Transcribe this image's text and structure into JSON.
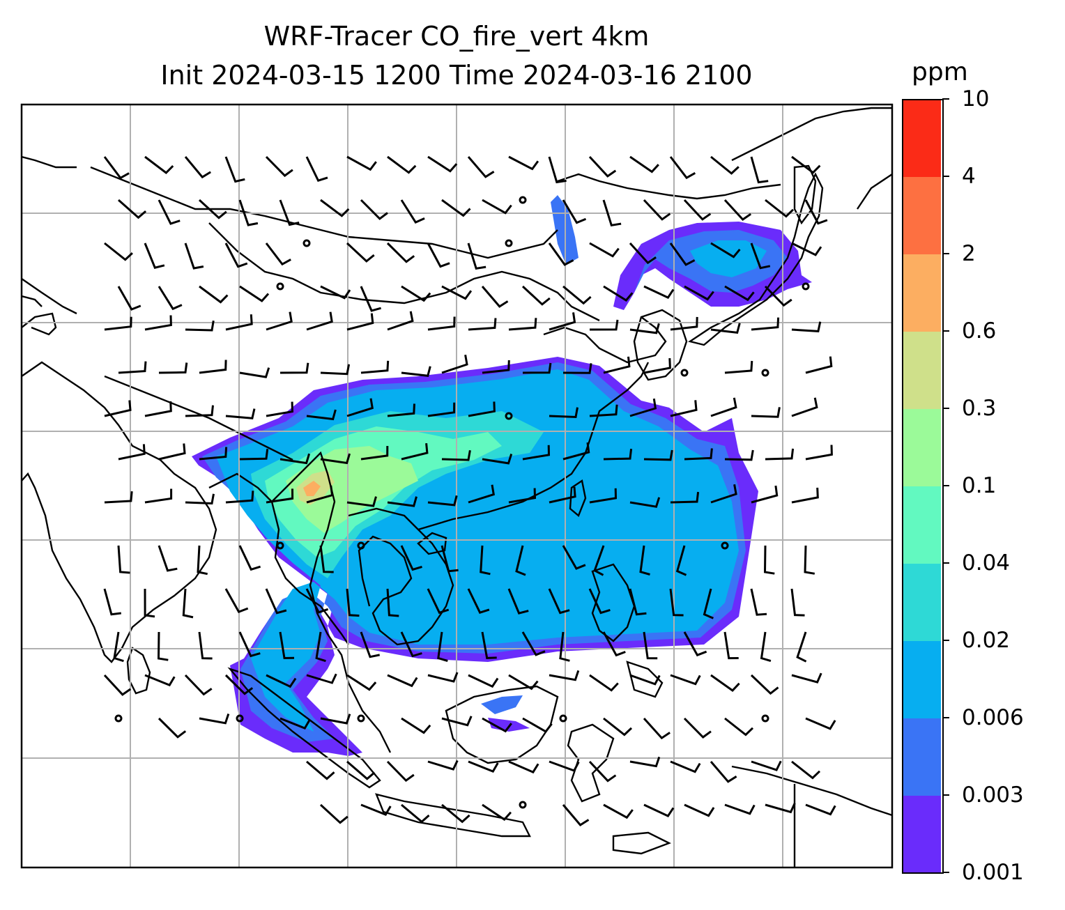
{
  "title": {
    "line1": "WRF-Tracer CO_fire_vert 4km",
    "line2": "Init 2024-03-15 1200 Time 2024-03-16 2100"
  },
  "colorbar": {
    "unit": "ppm",
    "ticks": [
      "0.001",
      "0.003",
      "0.006",
      "0.02",
      "0.04",
      "0.1",
      "0.3",
      "0.6",
      "2",
      "4",
      "10"
    ],
    "colors": [
      "#6a2cfb",
      "#3a74f5",
      "#07aef0",
      "#2ed9d6",
      "#62f9c0",
      "#9bfa99",
      "#cfe08a",
      "#fcae61",
      "#fd7041",
      "#fb2b17"
    ]
  },
  "map": {
    "frame_color": "#000000",
    "grid_color": "#b0b0b0",
    "coastline_color": "#000000",
    "barb_color": "#000000"
  }
}
